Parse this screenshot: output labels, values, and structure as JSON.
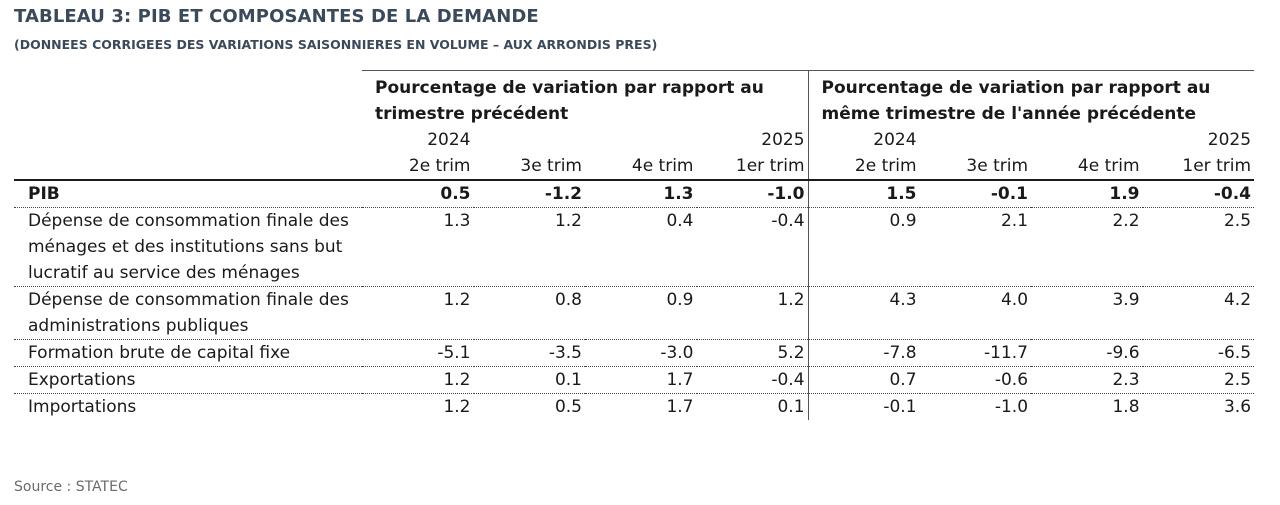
{
  "title": "TABLEAU 3: PIB ET COMPOSANTES DE LA DEMANDE",
  "subtitle": "(DONNEES CORRIGEES DES VARIATIONS SAISONNIERES EN VOLUME – AUX ARRONDIS PRES)",
  "groups": [
    "Pourcentage de variation par rapport au trimestre précédent",
    "Pourcentage de variation par rapport au même trimestre de l'année précédente"
  ],
  "years": [
    "2024",
    "",
    "",
    "2025",
    "2024",
    "",
    "",
    "2025"
  ],
  "quarters": [
    "2e trim",
    "3e trim",
    "4e trim",
    "1er trim",
    "2e trim",
    "3e trim",
    "4e trim",
    "1er trim"
  ],
  "rows": [
    {
      "label": "PIB",
      "values": [
        "0.5",
        "-1.2",
        "1.3",
        "-1.0",
        "1.5",
        "-0.1",
        "1.9",
        "-0.4"
      ]
    },
    {
      "label": "Dépense de consommation finale des ménages et des institutions sans but lucratif au service des ménages",
      "values": [
        "1.3",
        "1.2",
        "0.4",
        "-0.4",
        "0.9",
        "2.1",
        "2.2",
        "2.5"
      ]
    },
    {
      "label": "Dépense de consommation finale des administrations publiques",
      "values": [
        "1.2",
        "0.8",
        "0.9",
        "1.2",
        "4.3",
        "4.0",
        "3.9",
        "4.2"
      ]
    },
    {
      "label": "Formation brute de capital fixe",
      "values": [
        "-5.1",
        "-3.5",
        "-3.0",
        "5.2",
        "-7.8",
        "-11.7",
        "-9.6",
        "-6.5"
      ]
    },
    {
      "label": "Exportations",
      "values": [
        "1.2",
        "0.1",
        "1.7",
        "-0.4",
        "0.7",
        "-0.6",
        "2.3",
        "2.5"
      ]
    },
    {
      "label": "Importations",
      "values": [
        "1.2",
        "0.5",
        "1.7",
        "0.1",
        "-0.1",
        "-1.0",
        "1.8",
        "3.6"
      ]
    }
  ],
  "source": "Source : STATEC"
}
